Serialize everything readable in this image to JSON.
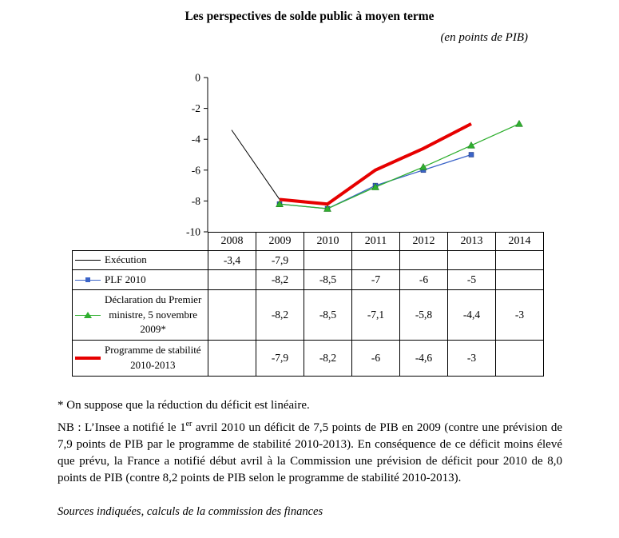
{
  "page": {
    "title": "Les perspectives de solde public à moyen terme",
    "subtitle": "(en points de PIB)"
  },
  "chart_data": {
    "type": "line",
    "title": "Les perspectives de solde public à moyen terme",
    "subtitle": "(en points de PIB)",
    "categories": [
      "2008",
      "2009",
      "2010",
      "2011",
      "2012",
      "2013",
      "2014"
    ],
    "ylim": [
      -10,
      0
    ],
    "yticks": [
      0,
      -2,
      -4,
      -6,
      -8,
      -10
    ],
    "grid": false,
    "legend_position": "table-left",
    "series": [
      {
        "name": "Exécution",
        "color": "#000000",
        "width": 1,
        "marker": "none",
        "values": [
          -3.4,
          -7.9,
          null,
          null,
          null,
          null,
          null
        ]
      },
      {
        "name": "PLF 2010",
        "color": "#3B64C8",
        "width": 1.3,
        "marker": "square",
        "values": [
          null,
          -8.2,
          -8.5,
          -7,
          -6,
          -5,
          null
        ]
      },
      {
        "name": "Déclaration du Premier ministre, 5 novembre 2009*",
        "color": "#2FAF2F",
        "width": 1.3,
        "marker": "triangle",
        "values": [
          null,
          -8.2,
          -8.5,
          -7.1,
          -5.8,
          -4.4,
          -3
        ]
      },
      {
        "name": "Programme de stabilité 2010-2013",
        "color": "#E60000",
        "width": 4,
        "marker": "none",
        "values": [
          null,
          -7.9,
          -8.2,
          -6,
          -4.6,
          -3,
          null
        ]
      }
    ]
  },
  "table": {
    "years": [
      "2008",
      "2009",
      "2010",
      "2011",
      "2012",
      "2013",
      "2014"
    ],
    "rows": [
      {
        "lines": [
          "Exécution"
        ],
        "values": [
          "-3,4",
          "-7,9",
          "",
          "",
          "",
          "",
          ""
        ]
      },
      {
        "lines": [
          "PLF 2010"
        ],
        "values": [
          "",
          "-8,2",
          "-8,5",
          "-7",
          "-6",
          "-5",
          ""
        ]
      },
      {
        "lines": [
          "Déclaration du Premier",
          "ministre, 5 novembre",
          "2009*"
        ],
        "values": [
          "",
          "-8,2",
          "-8,5",
          "-7,1",
          "-5,8",
          "-4,4",
          "-3"
        ]
      },
      {
        "lines": [
          "Programme de stabilité",
          "2010-2013"
        ],
        "values": [
          "",
          "-7,9",
          "-8,2",
          "-6",
          "-4,6",
          "-3",
          ""
        ]
      }
    ]
  },
  "notes": {
    "footnote": "* On suppose que la réduction du déficit est linéaire.",
    "nb_prefix": "NB : L’Insee a notifié le 1",
    "nb_sup": "er",
    "nb_rest": " avril 2010 un déficit de 7,5 points de PIB en 2009 (contre une prévision de 7,9 points de PIB par le programme de stabilité 2010-2013). En conséquence de ce déficit moins élevé que prévu, la France a notifié début avril à la Commission une prévision de déficit pour 2010 de 8,0 points de PIB (contre 8,2 points de PIB selon le programme de stabilité 2010-2013).",
    "sources": "Sources indiquées, calculs de la commission des finances"
  }
}
